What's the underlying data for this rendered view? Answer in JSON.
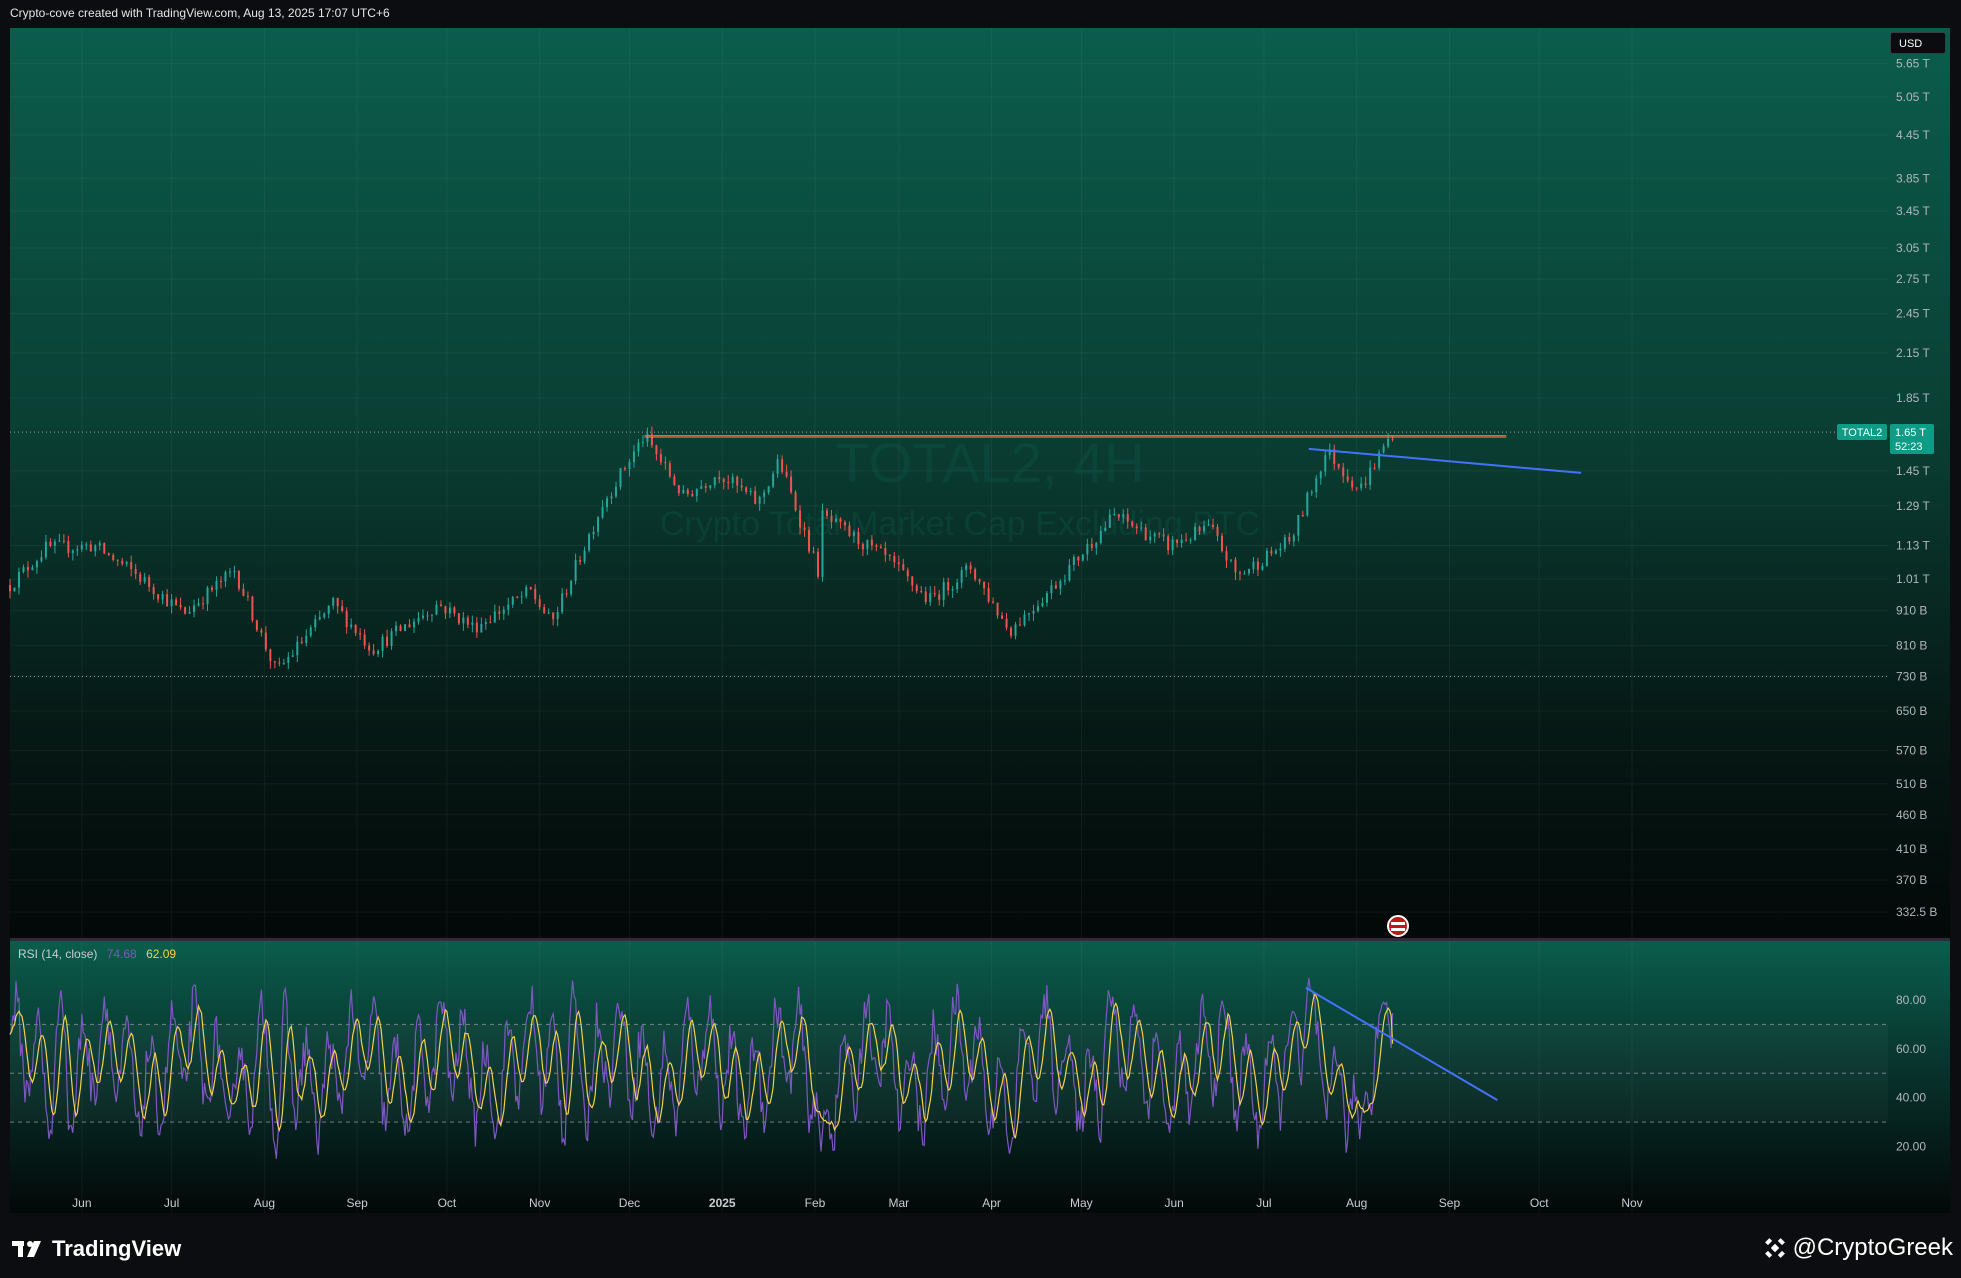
{
  "header": {
    "text": "Crypto-cove created with TradingView.com, Aug 13, 2025 17:07 UTC+6"
  },
  "watermark": {
    "symbol": "TOTAL2, 4H",
    "desc": "Crypto Total Market Cap Excluding BTC"
  },
  "currency_badge": "USD",
  "price_label": {
    "ticker": "TOTAL2",
    "value": "1.65 T",
    "countdown": "52:23"
  },
  "rsi_legend": {
    "name": "RSI (14, close)",
    "rsi_value": "74.68",
    "ma_value": "62.09"
  },
  "footer": {
    "brand": "TradingView",
    "credit": "@CryptoGreek"
  },
  "colors": {
    "up": "#26a69a",
    "down": "#ef5350",
    "resistance": "#ff5a3c",
    "trendline": "#4472ff",
    "rsi": "#7e57c2",
    "rsi_ma": "#f5d04a"
  },
  "chart_data": [
    {
      "type": "candlestick",
      "title": "TOTAL2, 4H",
      "subtitle": "Crypto Total Market Cap Excluding BTC",
      "yscale": "log",
      "y_ticks": [
        "5.65 T",
        "5.05 T",
        "4.45 T",
        "3.85 T",
        "3.45 T",
        "3.05 T",
        "2.75 T",
        "2.45 T",
        "2.15 T",
        "1.85 T",
        "1.45 T",
        "1.29 T",
        "1.13 T",
        "1.01 T",
        "910 B",
        "810 B",
        "730 B",
        "650 B",
        "570 B",
        "510 B",
        "460 B",
        "410 B",
        "370 B",
        "332.5 B"
      ],
      "y_tick_values": [
        5.65,
        5.05,
        4.45,
        3.85,
        3.45,
        3.05,
        2.75,
        2.45,
        2.15,
        1.85,
        1.45,
        1.29,
        1.13,
        1.01,
        0.91,
        0.81,
        0.73,
        0.65,
        0.57,
        0.51,
        0.46,
        0.41,
        0.37,
        0.3325
      ],
      "x_ticks": [
        "Jun",
        "Jul",
        "Aug",
        "Sep",
        "Oct",
        "Nov",
        "Dec",
        "2025",
        "Feb",
        "Mar",
        "Apr",
        "May",
        "Jun",
        "Jul",
        "Aug",
        "Sep",
        "Oct",
        "Nov"
      ],
      "x_tick_dates": [
        "2024-06-01",
        "2024-07-01",
        "2024-08-01",
        "2024-09-01",
        "2024-10-01",
        "2024-11-01",
        "2024-12-01",
        "2025-01-01",
        "2025-02-01",
        "2025-03-01",
        "2025-04-01",
        "2025-05-01",
        "2025-06-01",
        "2025-07-01",
        "2025-08-01",
        "2025-09-01",
        "2025-10-01",
        "2025-11-01"
      ],
      "unit": "T",
      "series_points": [
        {
          "date": "2024-05-08",
          "value": 0.99
        },
        {
          "date": "2024-05-20",
          "value": 1.12
        },
        {
          "date": "2024-06-05",
          "value": 1.13
        },
        {
          "date": "2024-06-20",
          "value": 1.02
        },
        {
          "date": "2024-07-05",
          "value": 0.9
        },
        {
          "date": "2024-07-22",
          "value": 1.04
        },
        {
          "date": "2024-08-05",
          "value": 0.74
        },
        {
          "date": "2024-08-24",
          "value": 0.93
        },
        {
          "date": "2024-09-06",
          "value": 0.8
        },
        {
          "date": "2024-09-28",
          "value": 0.93
        },
        {
          "date": "2024-10-10",
          "value": 0.86
        },
        {
          "date": "2024-10-29",
          "value": 0.97
        },
        {
          "date": "2024-11-05",
          "value": 0.87
        },
        {
          "date": "2024-11-22",
          "value": 1.3
        },
        {
          "date": "2024-12-06",
          "value": 1.63
        },
        {
          "date": "2024-12-19",
          "value": 1.33
        },
        {
          "date": "2024-12-31",
          "value": 1.44
        },
        {
          "date": "2025-01-13",
          "value": 1.3
        },
        {
          "date": "2025-01-20",
          "value": 1.5
        },
        {
          "date": "2025-02-03",
          "value": 1.01
        },
        {
          "date": "2025-02-03",
          "value": 1.25
        },
        {
          "date": "2025-02-25",
          "value": 1.08
        },
        {
          "date": "2025-03-11",
          "value": 0.94
        },
        {
          "date": "2025-03-25",
          "value": 1.05
        },
        {
          "date": "2025-04-07",
          "value": 0.85
        },
        {
          "date": "2025-04-22",
          "value": 0.99
        },
        {
          "date": "2025-05-12",
          "value": 1.25
        },
        {
          "date": "2025-05-30",
          "value": 1.13
        },
        {
          "date": "2025-06-13",
          "value": 1.2
        },
        {
          "date": "2025-06-22",
          "value": 1.02
        },
        {
          "date": "2025-07-10",
          "value": 1.15
        },
        {
          "date": "2025-07-22",
          "value": 1.55
        },
        {
          "date": "2025-08-02",
          "value": 1.36
        },
        {
          "date": "2025-08-13",
          "value": 1.65
        }
      ],
      "current_value": 1.65,
      "low_line_value": 0.73,
      "resistance": {
        "value": 1.63,
        "from": "2024-12-06",
        "to": "2025-09-20"
      },
      "trendline": [
        {
          "date": "2025-07-16",
          "value": 1.56
        },
        {
          "date": "2025-10-15",
          "value": 1.44
        }
      ]
    },
    {
      "type": "line",
      "title": "RSI (14, close)",
      "y_ticks": [
        "80.00",
        "60.00",
        "40.00",
        "20.00"
      ],
      "y_tick_values": [
        80,
        60,
        40,
        20
      ],
      "bands": [
        70,
        50,
        30
      ],
      "series": [
        {
          "name": "RSI (14, close)",
          "last": 74.68
        },
        {
          "name": "MA",
          "last": 62.09
        }
      ],
      "approx_points": [
        {
          "date": "2024-05-25",
          "value": 84
        },
        {
          "date": "2024-08-05",
          "value": 15
        },
        {
          "date": "2024-11-12",
          "value": 88
        },
        {
          "date": "2025-02-03",
          "value": 18
        },
        {
          "date": "2025-04-07",
          "value": 17
        },
        {
          "date": "2025-05-10",
          "value": 84
        },
        {
          "date": "2025-07-16",
          "value": 89
        },
        {
          "date": "2025-08-02",
          "value": 23
        },
        {
          "date": "2025-08-11",
          "value": 79
        }
      ],
      "trendline": [
        {
          "date": "2025-07-15",
          "value": 85
        },
        {
          "date": "2025-09-17",
          "value": 39
        }
      ]
    }
  ]
}
